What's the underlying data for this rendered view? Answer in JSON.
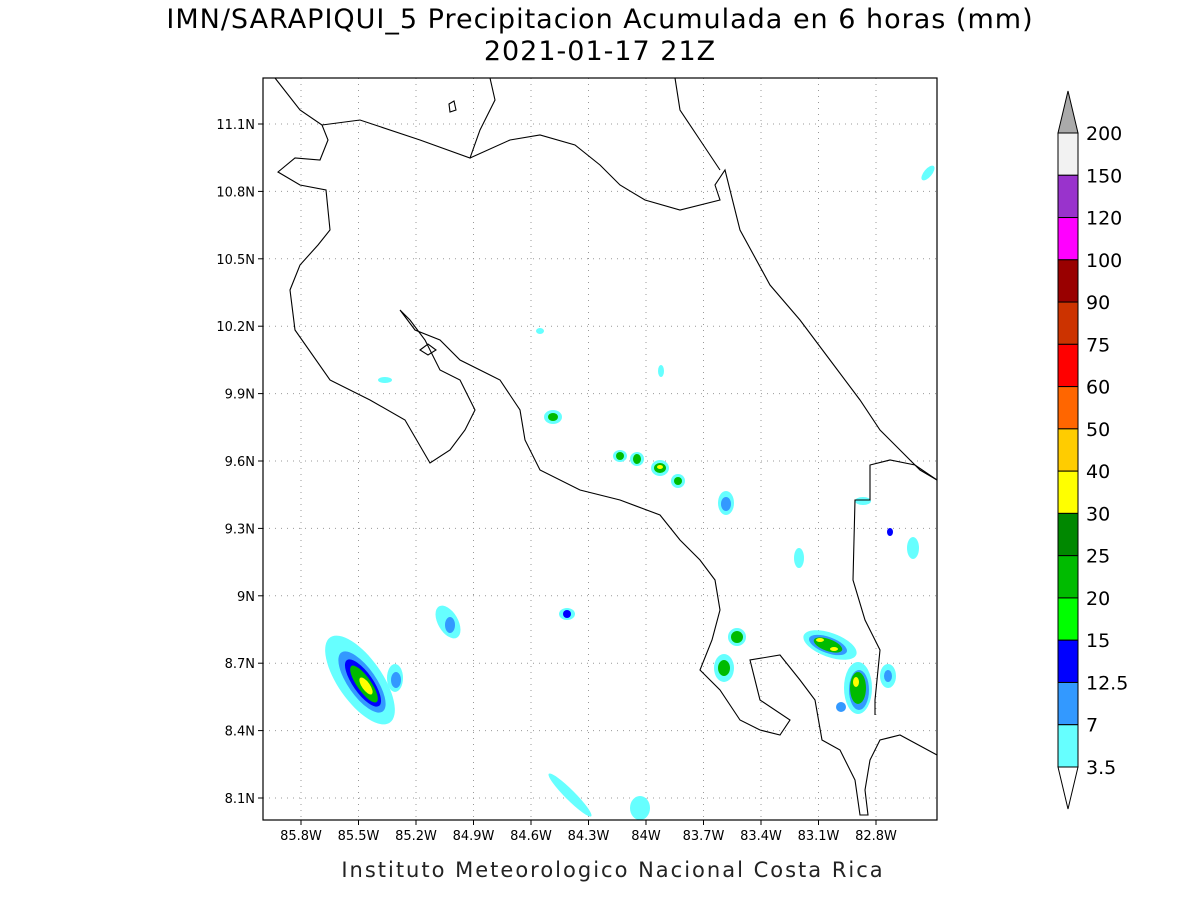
{
  "header": {
    "title": "IMN/SARAPIQUI_5 Precipitacion Acumulada en 6 horas (mm)",
    "subtitle": "2021-01-17 21Z"
  },
  "map": {
    "x_tick_labels": [
      "85.8W",
      "85.5W",
      "85.2W",
      "84.9W",
      "84.6W",
      "84.3W",
      "84W",
      "83.7W",
      "83.4W",
      "83.1W",
      "82.8W"
    ],
    "y_tick_labels": [
      "11.1N",
      "10.8N",
      "10.5N",
      "10.2N",
      "9.9N",
      "9.6N",
      "9.3N",
      "9N",
      "8.7N",
      "8.4N",
      "8.1N"
    ]
  },
  "colorbar": {
    "levels": [
      200,
      150,
      120,
      100,
      90,
      75,
      60,
      50,
      40,
      30,
      25,
      20,
      15,
      12.5,
      7,
      3.5
    ],
    "colors": [
      "#f2f2f2",
      "#9933cc",
      "#ff00ff",
      "#990000",
      "#cc3300",
      "#ff0000",
      "#ff6600",
      "#ffcc00",
      "#ffff00",
      "#008800",
      "#00bb00",
      "#00ff00",
      "#0000ff",
      "#3399ff",
      "#66ffff"
    ],
    "over_color": "#aaaaaa",
    "under_color": "#ffffff"
  },
  "footer": "Instituto Meteorologico Nacional Costa Rica"
}
